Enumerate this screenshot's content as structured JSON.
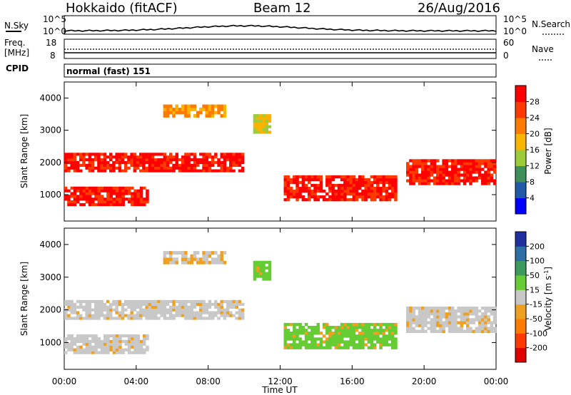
{
  "header": {
    "station": "Hokkaido (fitACF)",
    "beam": "Beam 12",
    "date": "26/Aug/2016"
  },
  "strip_labels": {
    "nsky": "N.Sky",
    "nsearch": "N.Search",
    "freq_line1": "Freq.",
    "freq_line2": "[MHz]",
    "nave": "Nave",
    "cpid": "CPID",
    "cpid_value": "normal (fast) 151",
    "noise_ticks": [
      "10^5",
      "10^0"
    ],
    "freq_ticks": [
      "18",
      "8"
    ],
    "nave_ticks": [
      "60",
      "0"
    ]
  },
  "chart_data": {
    "type": "heatmap",
    "xlabel": "Time UT",
    "x_ticks": [
      "00:00",
      "04:00",
      "08:00",
      "12:00",
      "16:00",
      "20:00",
      "00:00"
    ],
    "xlim_hours": [
      0,
      24
    ],
    "panels": [
      {
        "ylabel": "Slant Range [km]",
        "ylim": [
          180,
          4500
        ],
        "y_ticks": [
          1000,
          2000,
          3000,
          4000
        ],
        "colorbar_label": "Power [dB]",
        "colorbar_ticks": [
          4,
          8,
          12,
          16,
          20,
          24,
          28
        ],
        "colorbar_colors": [
          "#0000ff",
          "#1e5aa8",
          "#3f8f5a",
          "#9ccc3a",
          "#f8b400",
          "#ff7a00",
          "#ff3a00",
          "#ff0000"
        ],
        "echo_bands": [
          {
            "t0": 0.0,
            "t1": 4.7,
            "r0": 650,
            "r1": 1250,
            "level": "high"
          },
          {
            "t0": 0.0,
            "t1": 10.0,
            "r0": 1700,
            "r1": 2300,
            "level": "high"
          },
          {
            "t0": 5.5,
            "t1": 9.0,
            "r0": 3400,
            "r1": 3800,
            "level": "mid"
          },
          {
            "t0": 10.5,
            "t1": 11.5,
            "r0": 2900,
            "r1": 3500,
            "level": "low"
          },
          {
            "t0": 12.2,
            "t1": 18.5,
            "r0": 800,
            "r1": 1600,
            "level": "high"
          },
          {
            "t0": 19.0,
            "t1": 24.0,
            "r0": 1300,
            "r1": 2100,
            "level": "high"
          }
        ]
      },
      {
        "ylabel": "Slant Range [km]",
        "ylim": [
          180,
          4500
        ],
        "y_ticks": [
          1000,
          2000,
          3000,
          4000
        ],
        "colorbar_label": "Velocity [m s^-1]",
        "colorbar_ticks": [
          200,
          100,
          50,
          15,
          -15,
          -50,
          -100,
          -200
        ],
        "colorbar_colors": [
          "#1f2f9f",
          "#2b6fa6",
          "#3c9a5a",
          "#66cc33",
          "#c8c8c8",
          "#f0a020",
          "#ff7a00",
          "#ff3a00",
          "#e00000"
        ],
        "echo_bands": [
          {
            "t0": 0.0,
            "t1": 4.7,
            "r0": 650,
            "r1": 1250,
            "level": "ground"
          },
          {
            "t0": 0.0,
            "t1": 10.0,
            "r0": 1700,
            "r1": 2300,
            "level": "ground"
          },
          {
            "t0": 5.5,
            "t1": 9.0,
            "r0": 3400,
            "r1": 3800,
            "level": "mixed"
          },
          {
            "t0": 10.5,
            "t1": 11.5,
            "r0": 2900,
            "r1": 3500,
            "level": "positive"
          },
          {
            "t0": 12.2,
            "t1": 18.5,
            "r0": 800,
            "r1": 1600,
            "level": "positive"
          },
          {
            "t0": 19.0,
            "t1": 24.0,
            "r0": 1300,
            "r1": 2100,
            "level": "ground"
          }
        ]
      }
    ]
  }
}
